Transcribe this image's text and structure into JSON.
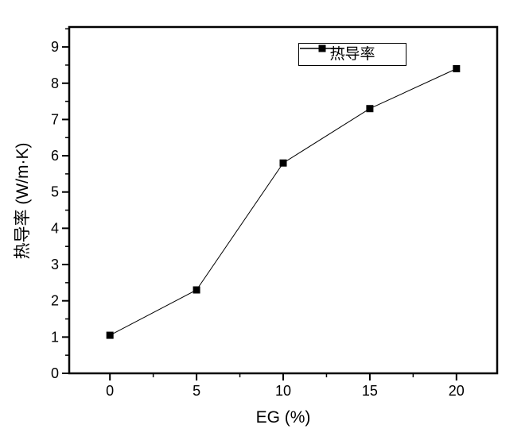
{
  "figure": {
    "background_color": "#ffffff",
    "foreground_color": "#000000"
  },
  "chart_data": {
    "type": "line",
    "title": "",
    "xlabel": "EG (%)",
    "ylabel": "热导率 (W/m·K)",
    "x": [
      0,
      5,
      10,
      15,
      20
    ],
    "series": [
      {
        "name": "热导率",
        "values": [
          1.05,
          2.3,
          5.8,
          7.3,
          8.4
        ],
        "color": "#000000",
        "marker": "filled-square",
        "line_style": "solid"
      }
    ],
    "xlim": [
      -2.35,
      22.35
    ],
    "ylim": [
      0,
      9.55
    ],
    "x_major_ticks": [
      0,
      5,
      10,
      15,
      20
    ],
    "x_minor_step": 2.5,
    "y_major_ticks": [
      0,
      1,
      2,
      3,
      4,
      5,
      6,
      7,
      8,
      9
    ],
    "y_minor_step": 0.5,
    "grid": "off",
    "tick_direction": "out",
    "legend": {
      "position": "inside-top",
      "entries": [
        "热导率"
      ],
      "border_color": "#000000",
      "background": "#ffffff"
    },
    "axis_color": "#000000",
    "tick_label_color": "#000000",
    "tick_label_font_size": 18
  }
}
